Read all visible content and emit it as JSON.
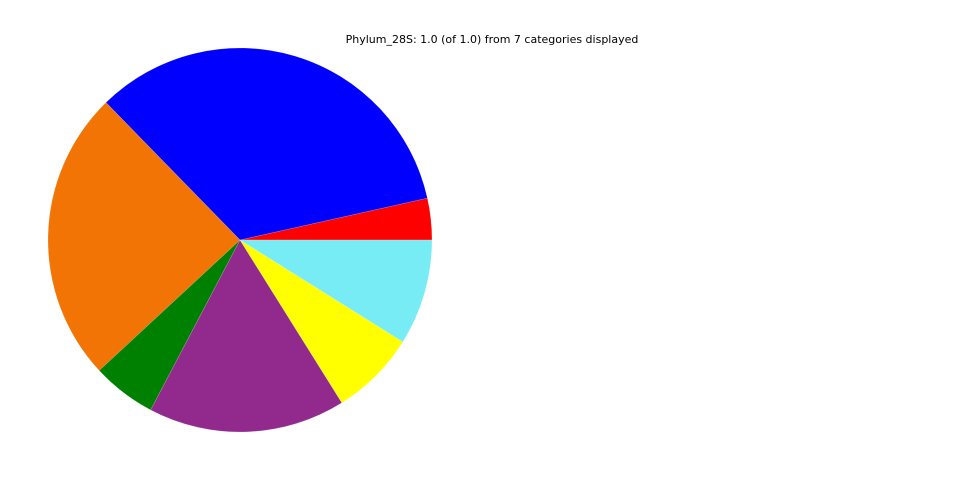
{
  "title": "Phylum_28S: 1.0 (of 1.0) from 7 categories displayed",
  "chart_data": {
    "type": "pie",
    "title": "Phylum_28S: 1.0 (of 1.0) from 7 categories displayed",
    "start_angle_deg": 0,
    "direction": "counterclockwise",
    "values": [
      0.035,
      0.338,
      0.246,
      0.054,
      0.166,
      0.072,
      0.089
    ],
    "colors": [
      "#ff0000",
      "#0000ff",
      "#f27405",
      "#008000",
      "#912a8c",
      "#ffff00",
      "#78ecf4"
    ]
  }
}
